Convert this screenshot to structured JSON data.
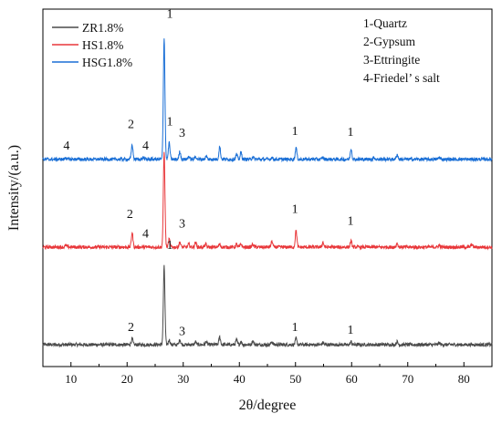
{
  "chart_data": {
    "type": "line",
    "title": "",
    "xlabel": "2θ/degree",
    "ylabel": "Intensity/(a.u.)",
    "xlim": [
      5,
      85
    ],
    "x_ticks": [
      "10",
      "20",
      "30",
      "40",
      "50",
      "60",
      "70",
      "80"
    ],
    "y_ticks_shown": false,
    "grid": false,
    "legend_position": "top-left",
    "series": [
      {
        "name": "ZR1.8%",
        "color": "#4a4a4a",
        "baseline_au": 0.0,
        "peaks": [
          {
            "x": 20.9,
            "h": 0.06
          },
          {
            "x": 26.6,
            "h": 0.8
          },
          {
            "x": 27.5,
            "h": 0.05
          },
          {
            "x": 29.4,
            "h": 0.05
          },
          {
            "x": 32.2,
            "h": 0.03
          },
          {
            "x": 34.1,
            "h": 0.03
          },
          {
            "x": 36.5,
            "h": 0.08
          },
          {
            "x": 39.5,
            "h": 0.05
          },
          {
            "x": 40.3,
            "h": 0.03
          },
          {
            "x": 42.4,
            "h": 0.04
          },
          {
            "x": 45.8,
            "h": 0.03
          },
          {
            "x": 50.1,
            "h": 0.06
          },
          {
            "x": 54.9,
            "h": 0.02
          },
          {
            "x": 59.9,
            "h": 0.03
          },
          {
            "x": 68.1,
            "h": 0.03
          },
          {
            "x": 75.6,
            "h": 0.02
          }
        ]
      },
      {
        "name": "HS1.8%",
        "color": "#e8373a",
        "baseline_au": 1.0,
        "peaks": [
          {
            "x": 9.1,
            "h": 0.02
          },
          {
            "x": 20.9,
            "h": 0.15
          },
          {
            "x": 26.6,
            "h": 0.98
          },
          {
            "x": 27.5,
            "h": 0.08
          },
          {
            "x": 29.4,
            "h": 0.05
          },
          {
            "x": 31.0,
            "h": 0.03
          },
          {
            "x": 32.2,
            "h": 0.05
          },
          {
            "x": 34.0,
            "h": 0.03
          },
          {
            "x": 36.5,
            "h": 0.03
          },
          {
            "x": 39.5,
            "h": 0.03
          },
          {
            "x": 40.3,
            "h": 0.03
          },
          {
            "x": 42.4,
            "h": 0.03
          },
          {
            "x": 45.8,
            "h": 0.06
          },
          {
            "x": 50.1,
            "h": 0.17
          },
          {
            "x": 54.9,
            "h": 0.05
          },
          {
            "x": 59.9,
            "h": 0.06
          },
          {
            "x": 68.1,
            "h": 0.04
          },
          {
            "x": 75.6,
            "h": 0.02
          },
          {
            "x": 81.4,
            "h": 0.03
          }
        ]
      },
      {
        "name": "HSG1.8%",
        "color": "#1a6fd6",
        "baseline_au": 1.9,
        "peaks": [
          {
            "x": 9.1,
            "h": 0.02
          },
          {
            "x": 20.9,
            "h": 0.15
          },
          {
            "x": 22.9,
            "h": 0.02
          },
          {
            "x": 26.6,
            "h": 1.25
          },
          {
            "x": 27.5,
            "h": 0.17
          },
          {
            "x": 29.4,
            "h": 0.08
          },
          {
            "x": 31.0,
            "h": 0.03
          },
          {
            "x": 32.2,
            "h": 0.03
          },
          {
            "x": 34.1,
            "h": 0.03
          },
          {
            "x": 36.5,
            "h": 0.13
          },
          {
            "x": 39.5,
            "h": 0.05
          },
          {
            "x": 40.3,
            "h": 0.07
          },
          {
            "x": 42.4,
            "h": 0.03
          },
          {
            "x": 45.8,
            "h": 0.02
          },
          {
            "x": 50.1,
            "h": 0.12
          },
          {
            "x": 54.9,
            "h": 0.02
          },
          {
            "x": 59.9,
            "h": 0.11
          },
          {
            "x": 64.0,
            "h": 0.02
          },
          {
            "x": 68.1,
            "h": 0.05
          },
          {
            "x": 75.6,
            "h": 0.02
          }
        ]
      }
    ],
    "peak_labels": [
      {
        "text": "1",
        "x": 27.6,
        "y_au": 3.35
      },
      {
        "text": "2",
        "x": 20.7,
        "y_au": 2.22
      },
      {
        "text": "4",
        "x": 9.2,
        "y_au": 2.0
      },
      {
        "text": "4",
        "x": 23.3,
        "y_au": 2.0
      },
      {
        "text": "3",
        "x": 29.8,
        "y_au": 2.13
      },
      {
        "text": "1",
        "x": 49.9,
        "y_au": 2.15
      },
      {
        "text": "1",
        "x": 59.8,
        "y_au": 2.14
      },
      {
        "text": "1",
        "x": 27.6,
        "y_au": 2.25
      },
      {
        "text": "2",
        "x": 20.5,
        "y_au": 1.3
      },
      {
        "text": "3",
        "x": 29.8,
        "y_au": 1.2
      },
      {
        "text": "4",
        "x": 23.3,
        "y_au": 1.1
      },
      {
        "text": "1",
        "x": 49.9,
        "y_au": 1.35
      },
      {
        "text": "1",
        "x": 59.8,
        "y_au": 1.23
      },
      {
        "text": "1",
        "x": 27.6,
        "y_au": 0.98
      },
      {
        "text": "2",
        "x": 20.7,
        "y_au": 0.14
      },
      {
        "text": "3",
        "x": 29.8,
        "y_au": 0.1
      },
      {
        "text": "1",
        "x": 49.9,
        "y_au": 0.14
      },
      {
        "text": "1",
        "x": 59.8,
        "y_au": 0.11
      }
    ],
    "phase_key": [
      "1-Quartz",
      "2-Gypsum",
      "3-Ettringite",
      "4-Friedel’ s salt"
    ]
  }
}
